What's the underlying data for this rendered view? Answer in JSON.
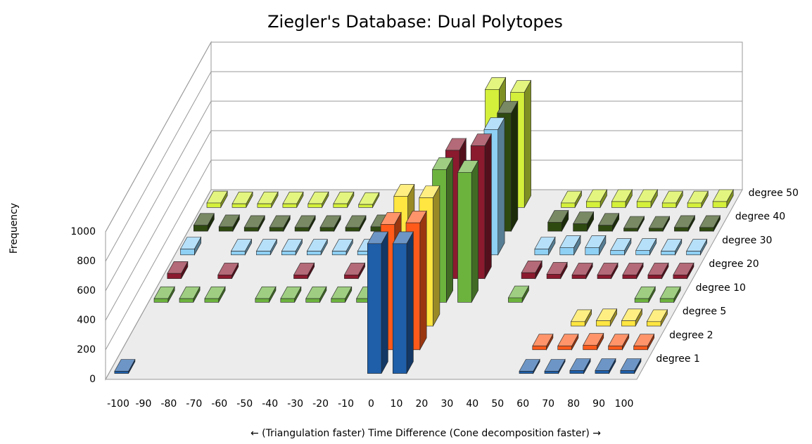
{
  "chart_data": {
    "type": "bar3d",
    "title": "Ziegler's Database: Dual Polytopes",
    "y_label": "Frequency",
    "x_label": "← (Triangulation faster)    Time Difference    (Cone decomposition faster) →",
    "x": [
      -100,
      -90,
      -80,
      -70,
      -60,
      -50,
      -40,
      -30,
      -20,
      -10,
      0,
      10,
      20,
      30,
      40,
      50,
      60,
      70,
      80,
      90,
      100
    ],
    "xlim": [
      -105,
      105
    ],
    "ylim": [
      0,
      1000
    ],
    "yticks": [
      0,
      200,
      400,
      600,
      800,
      1000
    ],
    "grid": true,
    "series": [
      {
        "name": "degree 1",
        "color": "#1f5ea8",
        "values": [
          15,
          0,
          0,
          0,
          0,
          0,
          0,
          0,
          0,
          0,
          880,
          880,
          0,
          0,
          0,
          0,
          15,
          15,
          20,
          20,
          20
        ]
      },
      {
        "name": "degree 2",
        "color": "#ff5a1a",
        "values": [
          0,
          0,
          0,
          0,
          0,
          0,
          0,
          0,
          0,
          0,
          850,
          860,
          0,
          0,
          0,
          0,
          25,
          25,
          30,
          25,
          25
        ]
      },
      {
        "name": "degree 5",
        "color": "#ffe640",
        "values": [
          0,
          0,
          0,
          0,
          0,
          0,
          0,
          0,
          0,
          0,
          880,
          870,
          0,
          0,
          0,
          0,
          0,
          30,
          35,
          35,
          30
        ]
      },
      {
        "name": "degree 10",
        "color": "#6cb33e",
        "values": [
          25,
          25,
          25,
          0,
          25,
          25,
          25,
          25,
          25,
          0,
          0,
          900,
          880,
          0,
          30,
          0,
          0,
          0,
          0,
          25,
          25
        ]
      },
      {
        "name": "degree 20",
        "color": "#8b1a2f",
        "values": [
          35,
          0,
          25,
          0,
          0,
          25,
          0,
          25,
          30,
          40,
          0,
          870,
          900,
          0,
          40,
          30,
          25,
          25,
          25,
          25,
          25
        ]
      },
      {
        "name": "degree 30",
        "color": "#8fd0f5",
        "values": [
          40,
          0,
          25,
          25,
          25,
          25,
          25,
          25,
          30,
          0,
          0,
          0,
          850,
          0,
          40,
          50,
          50,
          30,
          30,
          25,
          25
        ]
      },
      {
        "name": "degree 40",
        "color": "#2f4a10",
        "values": [
          40,
          30,
          25,
          25,
          25,
          25,
          25,
          30,
          0,
          30,
          0,
          0,
          800,
          0,
          60,
          50,
          40,
          20,
          20,
          25,
          25
        ]
      },
      {
        "name": "degree 50",
        "color": "#d4f03a",
        "values": [
          30,
          25,
          25,
          25,
          25,
          25,
          20,
          0,
          0,
          0,
          0,
          800,
          780,
          0,
          30,
          40,
          40,
          40,
          30,
          30,
          40
        ]
      }
    ]
  }
}
